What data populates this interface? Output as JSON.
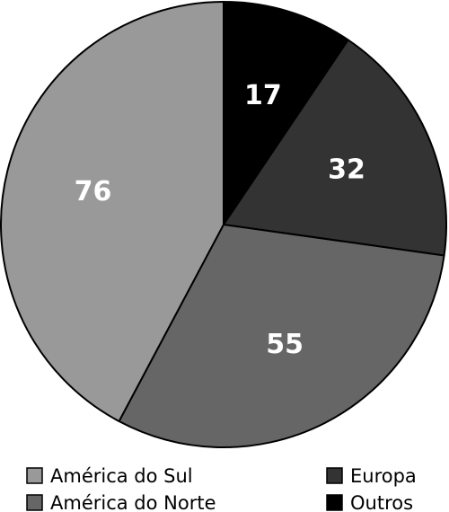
{
  "chart_data": {
    "type": "pie",
    "categories": [
      "Outros",
      "Europa",
      "América do Norte",
      "América do Sul"
    ],
    "values": [
      17,
      32,
      55,
      76
    ],
    "colors": [
      "#000000",
      "#333333",
      "#666666",
      "#999999"
    ],
    "title": "",
    "legend_placement": "bottom",
    "legend": {
      "left": [
        "América do Sul",
        "América do Norte"
      ],
      "right": [
        "Europa",
        "Outros"
      ]
    }
  }
}
